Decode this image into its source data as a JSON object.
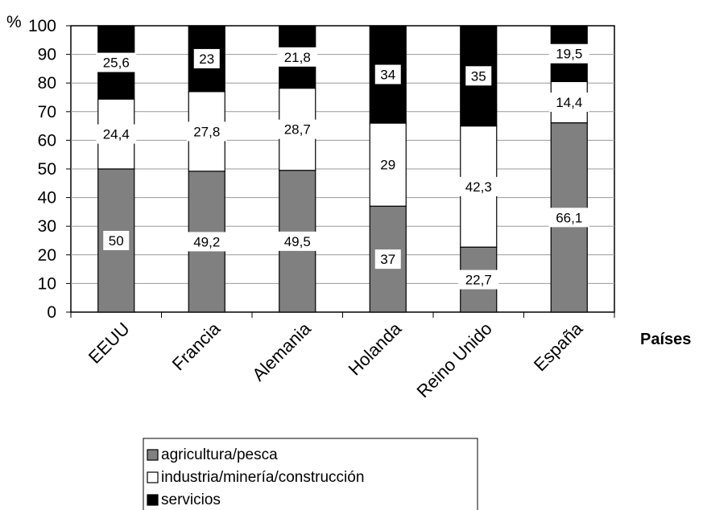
{
  "chart_data": {
    "type": "bar",
    "stacked": true,
    "categories": [
      "EEUU",
      "Francia",
      "Alemania",
      "Holanda",
      "Reino Unido",
      "España"
    ],
    "series": [
      {
        "name": "agricultura/pesca",
        "color": "#808080",
        "values": [
          50,
          49.2,
          49.5,
          37,
          22.7,
          66.1
        ]
      },
      {
        "name": "industria/minería/construcción",
        "color": "#ffffff",
        "values": [
          24.4,
          27.8,
          28.7,
          29,
          42.3,
          14.4
        ]
      },
      {
        "name": "servicios",
        "color": "#000000",
        "values": [
          25.6,
          23,
          21.8,
          34,
          35,
          19.5
        ]
      }
    ],
    "data_labels": [
      [
        "50",
        "49,2",
        "49,5",
        "37",
        "22,7",
        "66,1"
      ],
      [
        "24,4",
        "27,8",
        "28,7",
        "29",
        "42,3",
        "14,4"
      ],
      [
        "25,6",
        "23",
        "21,8",
        "34",
        "35",
        "19,5"
      ]
    ],
    "ylabel": "%",
    "xlabel": "Países",
    "ylim": [
      0,
      100
    ],
    "yticks": [
      0,
      10,
      20,
      30,
      40,
      50,
      60,
      70,
      80,
      90,
      100
    ],
    "legend_position": "bottom"
  }
}
